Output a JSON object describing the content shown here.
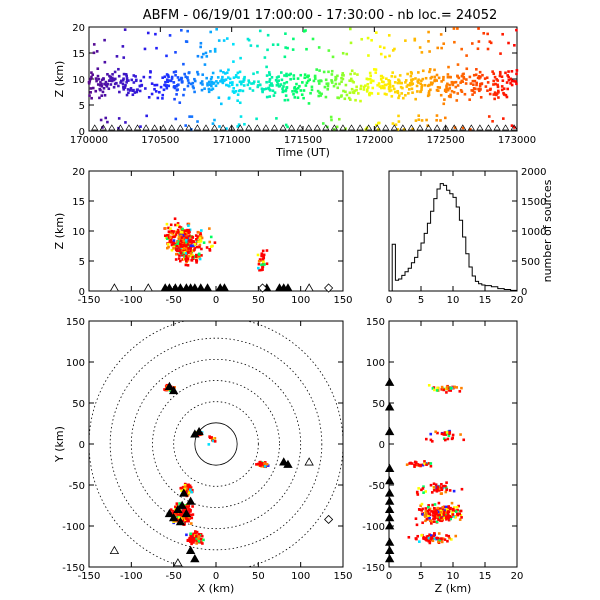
{
  "title": "ABFM - 06/19/01 17:00:00 - 17:30:00 - nb loc.=  24052",
  "chart_data": [
    {
      "type": "scatter",
      "panel": "time-height",
      "xlabel": "Time (UT)",
      "ylabel": "Z (km)",
      "xlim": [
        170000,
        173000
      ],
      "ylim": [
        0,
        20
      ],
      "xticks": [
        "170000",
        "170500",
        "171000",
        "171500",
        "172000",
        "172500",
        "173000"
      ],
      "yticks": [
        "0",
        "5",
        "10",
        "15",
        "20"
      ],
      "color_encoding": "time (purple → red)",
      "colors": [
        "#5a0a8c",
        "#2020ff",
        "#00e0ff",
        "#00ff60",
        "#ffff00",
        "#ff8000",
        "#ff0000"
      ]
    },
    {
      "type": "scatter",
      "panel": "x-height",
      "xlabel": "",
      "ylabel": "Z (km)",
      "xlim": [
        -150,
        150
      ],
      "ylim": [
        0,
        20
      ],
      "xticks": [
        "-150",
        "-100",
        "-50",
        "0",
        "50",
        "100",
        "150"
      ],
      "yticks": [
        "0",
        "5",
        "10",
        "15",
        "20"
      ]
    },
    {
      "type": "line",
      "panel": "height-histogram",
      "xlabel": "",
      "ylabel": "number of sources",
      "xlim": [
        0,
        20
      ],
      "ylim": [
        0,
        2000
      ],
      "xticks": [
        "0",
        "5",
        "10",
        "15",
        "20"
      ],
      "yticks": [
        "0",
        "500",
        "1000",
        "1500",
        "2000"
      ],
      "x": [
        0,
        0.5,
        1,
        1.5,
        2,
        2.5,
        3,
        3.5,
        4,
        4.5,
        5,
        5.5,
        6,
        6.5,
        7,
        7.5,
        8,
        8.5,
        9,
        9.5,
        10,
        10.5,
        11,
        11.5,
        12,
        12.5,
        13,
        13.5,
        14,
        14.5,
        15,
        16,
        17,
        18,
        19,
        20
      ],
      "values": [
        0,
        780,
        180,
        200,
        260,
        320,
        380,
        470,
        560,
        680,
        800,
        960,
        1130,
        1330,
        1540,
        1700,
        1790,
        1760,
        1680,
        1620,
        1560,
        1400,
        1180,
        900,
        620,
        400,
        250,
        160,
        120,
        100,
        90,
        70,
        40,
        25,
        10,
        0
      ]
    },
    {
      "type": "scatter",
      "panel": "plan-view",
      "xlabel": "X (km)",
      "ylabel": "Y (km)",
      "xlim": [
        -150,
        150
      ],
      "ylim": [
        -150,
        150
      ],
      "xticks": [
        "-150",
        "-100",
        "-50",
        "0",
        "50",
        "100",
        "150"
      ],
      "yticks": [
        "-150",
        "-100",
        "-50",
        "0",
        "50",
        "100",
        "150"
      ],
      "range_rings_km": [
        25,
        50,
        75,
        100,
        125,
        150
      ]
    },
    {
      "type": "scatter",
      "panel": "height-y",
      "xlabel": "Z (km)",
      "ylabel": "",
      "xlim": [
        0,
        20
      ],
      "ylim": [
        -150,
        150
      ],
      "xticks": [
        "0",
        "5",
        "10",
        "15",
        "20"
      ],
      "yticks": [
        "-150",
        "-100",
        "-50",
        "0",
        "50",
        "100",
        "150"
      ]
    }
  ]
}
